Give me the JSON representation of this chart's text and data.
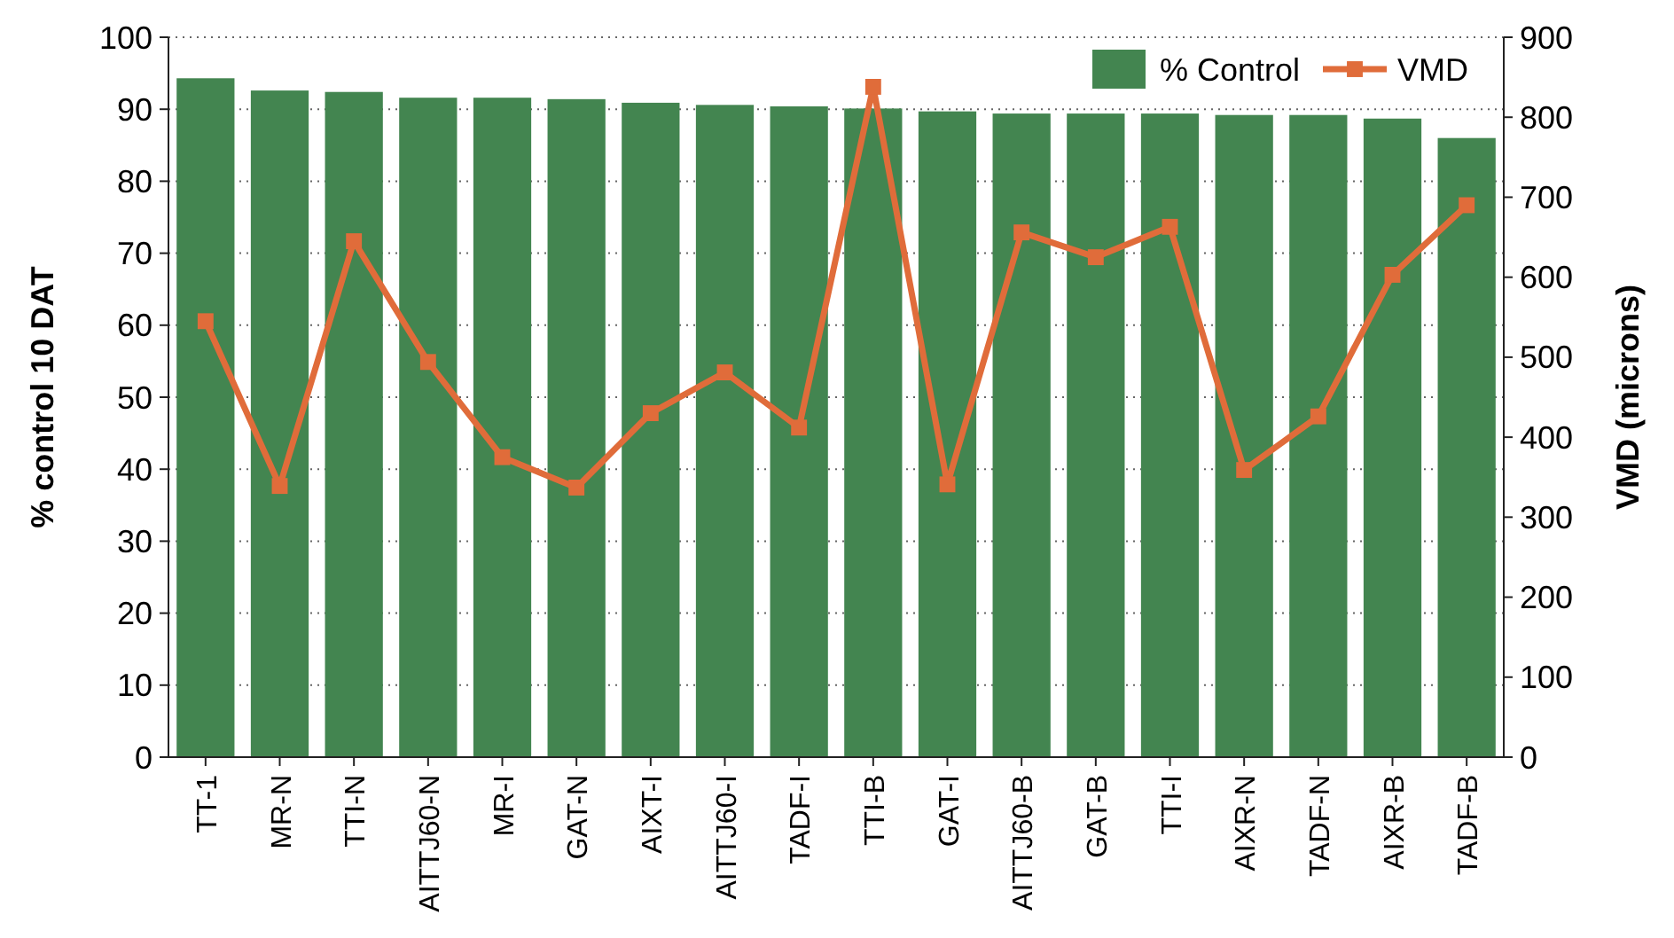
{
  "chart_data": {
    "type": "bar",
    "categories": [
      "TT-1",
      "MR-N",
      "TTI-N",
      "AITTJ60-N",
      "MR-I",
      "GAT-N",
      "AIXT-I",
      "AITTJ60-I",
      "TADF-I",
      "TTI-B",
      "GAT-I",
      "AITTJ60-B",
      "GAT-B",
      "TTI-I",
      "AIXR-N",
      "TADF-N",
      "AIXR-B",
      "TADF-B"
    ],
    "series": [
      {
        "name": "% Control",
        "color": "#438550",
        "values": [
          94.3,
          92.6,
          92.4,
          91.6,
          91.6,
          91.4,
          90.9,
          90.6,
          90.4,
          90.1,
          89.7,
          89.4,
          89.4,
          89.4,
          89.2,
          89.2,
          88.7,
          86.0
        ]
      },
      {
        "name": "VMD",
        "type": "line",
        "axis": "y2",
        "color": "#e06c3a",
        "marker": "square",
        "values": [
          545,
          339,
          645,
          494,
          375,
          337,
          430,
          481,
          412,
          838,
          341,
          656,
          625,
          663,
          359,
          426,
          603,
          690
        ]
      }
    ],
    "ylabel": "% control 10 DAT",
    "y2label": "VMD (microns)",
    "ylim": [
      0,
      100
    ],
    "yticks": [
      0,
      10,
      20,
      30,
      40,
      50,
      60,
      70,
      80,
      90,
      100
    ],
    "y2lim": [
      0,
      900
    ],
    "y2ticks": [
      0,
      100,
      200,
      300,
      400,
      500,
      600,
      700,
      800,
      900
    ],
    "grid": "y",
    "legend": "top right"
  }
}
